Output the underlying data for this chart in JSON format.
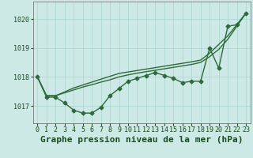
{
  "background_color": "#cce9e5",
  "plot_bg_color": "#cce9e5",
  "grid_color": "#aad4cf",
  "line_color": "#2d6b3c",
  "title": "Graphe pression niveau de la mer (hPa)",
  "xlim": [
    -0.5,
    23.5
  ],
  "ylim": [
    1016.4,
    1020.6
  ],
  "yticks": [
    1017,
    1018,
    1019,
    1020
  ],
  "xticks": [
    0,
    1,
    2,
    3,
    4,
    5,
    6,
    7,
    8,
    9,
    10,
    11,
    12,
    13,
    14,
    15,
    16,
    17,
    18,
    19,
    20,
    21,
    22,
    23
  ],
  "series_jagged": [
    1018.0,
    1017.3,
    1017.3,
    1017.1,
    1016.85,
    1016.75,
    1016.75,
    1016.95,
    1017.35,
    1017.6,
    1017.85,
    1017.95,
    1018.05,
    1018.15,
    1018.05,
    1017.95,
    1017.8,
    1017.85,
    1017.85,
    1019.0,
    1018.3,
    1019.75,
    1019.8,
    1020.2
  ],
  "series_smooth1": [
    1018.0,
    1017.35,
    1017.35,
    1017.45,
    1017.55,
    1017.65,
    1017.73,
    1017.82,
    1017.9,
    1018.0,
    1018.07,
    1018.13,
    1018.18,
    1018.23,
    1018.28,
    1018.33,
    1018.38,
    1018.43,
    1018.5,
    1018.7,
    1018.95,
    1019.3,
    1019.75,
    1020.2
  ],
  "series_smooth2": [
    1018.0,
    1017.35,
    1017.35,
    1017.48,
    1017.62,
    1017.72,
    1017.82,
    1017.92,
    1018.02,
    1018.12,
    1018.17,
    1018.22,
    1018.27,
    1018.32,
    1018.37,
    1018.42,
    1018.47,
    1018.52,
    1018.58,
    1018.82,
    1019.12,
    1019.42,
    1019.8,
    1020.2
  ],
  "marker": "D",
  "markersize": 2.5,
  "linewidth": 1.0,
  "title_fontsize": 8,
  "tick_fontsize": 6
}
